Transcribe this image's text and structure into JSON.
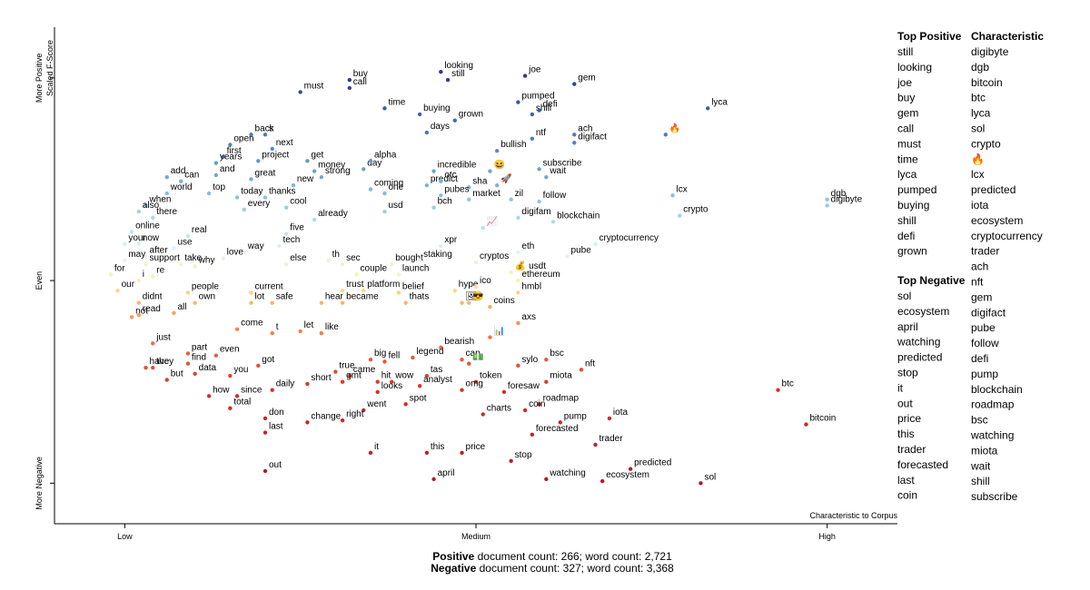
{
  "chart_data": {
    "type": "scatter",
    "x_title": "Characteristic to Corpus",
    "y_title": "Scaled F-Score",
    "xlim": [
      -0.1,
      1.1
    ],
    "ylim": [
      -1.2,
      1.25
    ],
    "xticks": [
      {
        "value": 0,
        "label": "Low"
      },
      {
        "value": 0.5,
        "label": "Medium"
      },
      {
        "value": 1,
        "label": "High"
      }
    ],
    "yticks": [
      {
        "value": -1,
        "label": "More Negative"
      },
      {
        "value": 0,
        "label": "Even"
      },
      {
        "value": 1,
        "label": "More Positive"
      }
    ],
    "labels": [
      "must",
      "buy",
      "call",
      "looking",
      "still",
      "joe",
      "gem",
      "time",
      "pumped",
      "buying",
      "grown",
      "shill",
      "defi",
      "lyca",
      "back",
      "s",
      "ach",
      "ntf",
      "digifact",
      "days",
      "open",
      "next",
      "bullish",
      "🔥",
      "first",
      "years",
      "project",
      "get",
      "day",
      "alpha",
      "money",
      "strong",
      "and",
      "great",
      "incredible",
      "😆",
      "wait",
      "subscribe",
      "add",
      "can",
      "world",
      "new",
      "coming",
      "predict",
      "otc",
      "sha",
      "🚀",
      "top",
      "today",
      "thanks",
      "one",
      "pubes",
      "market",
      "zil",
      "follow",
      "lcx",
      "dgb",
      "digibyte",
      "when",
      "also",
      "every",
      "cool",
      "usd",
      "bch",
      "digifam",
      "crypto",
      "there",
      "already",
      "📈",
      "blockchain",
      "online",
      "five",
      "real",
      "your",
      "now",
      "use",
      "tech",
      "xpr",
      "way",
      "eth",
      "cryptocurrency",
      "after",
      "may",
      "support",
      "take",
      "why",
      "love",
      "else",
      "th",
      "sec",
      "bought",
      "staking",
      "cryptos",
      "pube",
      "for",
      "i",
      "re",
      "💰",
      "usdt",
      "couple",
      "launch",
      "ethereum",
      "our",
      "people",
      "current",
      "trust",
      "platform",
      "belief",
      "hype",
      "ico",
      "hmbl",
      "didnt",
      "own",
      "lot",
      "safe",
      "hear",
      "became",
      "thats",
      "🖼",
      "😎",
      "coins",
      "not",
      "read",
      "all",
      "axs",
      "come",
      "t",
      "let",
      "like",
      "📊",
      "just",
      "bearish",
      "part",
      "even",
      "big",
      "fell",
      "legend",
      "cap",
      "bsc",
      "have",
      "they",
      "find",
      "got",
      "💵",
      "sylo",
      "nft",
      "data",
      "you",
      "true",
      "came",
      "but",
      "hit",
      "wow",
      "tas",
      "token",
      "miota",
      "gmt",
      "short",
      "analyst",
      "daily",
      "looks",
      "omg",
      "foresaw",
      "how",
      "since",
      "btc",
      "spot",
      "roadmap",
      "total",
      "went",
      "coin",
      "charts",
      "iota",
      "don",
      "right",
      "pump",
      "change",
      "bitcoin",
      "last",
      "forecasted",
      "trader",
      "it",
      "this",
      "price",
      "stop",
      "out",
      "predicted",
      "april",
      "watching",
      "ecosystem",
      "sol"
    ],
    "x": [
      0.25,
      0.32,
      0.32,
      0.45,
      0.46,
      0.57,
      0.64,
      0.37,
      0.56,
      0.42,
      0.47,
      0.58,
      0.59,
      0.83,
      0.18,
      0.2,
      0.64,
      0.58,
      0.64,
      0.43,
      0.15,
      0.21,
      0.53,
      0.77,
      0.14,
      0.13,
      0.19,
      0.26,
      0.34,
      0.35,
      0.27,
      0.28,
      0.13,
      0.18,
      0.44,
      0.52,
      0.6,
      0.59,
      0.06,
      0.08,
      0.06,
      0.24,
      0.35,
      0.43,
      0.45,
      0.49,
      0.53,
      0.12,
      0.16,
      0.2,
      0.37,
      0.45,
      0.49,
      0.55,
      0.59,
      0.78,
      1,
      1,
      0.03,
      0.02,
      0.17,
      0.23,
      0.37,
      0.44,
      0.56,
      0.79,
      0.04,
      0.27,
      0.51,
      0.61,
      0.01,
      0.23,
      0.09,
      0,
      0.02,
      0.07,
      0.22,
      0.45,
      0.17,
      0.56,
      0.67,
      0.03,
      0,
      0.03,
      0.08,
      0.1,
      0.14,
      0.23,
      0.29,
      0.31,
      0.38,
      0.42,
      0.5,
      0.63,
      -0.02,
      0.02,
      0.04,
      0.55,
      0.57,
      0.33,
      0.39,
      0.56,
      -0.01,
      0.09,
      0.18,
      0.31,
      0.34,
      0.39,
      0.47,
      0.5,
      0.56,
      0.02,
      0.1,
      0.18,
      0.21,
      0.28,
      0.31,
      0.4,
      0.48,
      0.49,
      0.52,
      0.01,
      0.02,
      0.07,
      0.56,
      0.16,
      0.21,
      0.25,
      0.28,
      0.52,
      0.04,
      0.45,
      0.09,
      0.13,
      0.35,
      0.37,
      0.41,
      0.48,
      0.6,
      0.03,
      0.04,
      0.09,
      0.19,
      0.49,
      0.56,
      0.65,
      0.1,
      0.15,
      0.3,
      0.32,
      0.06,
      0.36,
      0.38,
      0.43,
      0.5,
      0.6,
      0.31,
      0.26,
      0.42,
      0.21,
      0.36,
      0.48,
      0.54,
      0.12,
      0.16,
      0.93,
      0.4,
      0.59,
      0.15,
      0.34,
      0.57,
      0.51,
      0.69,
      0.2,
      0.31,
      0.62,
      0.26,
      0.97,
      0.2,
      0.58,
      0.67,
      0.35,
      0.43,
      0.48,
      0.55,
      0.2,
      0.72,
      0.44,
      0.6,
      0.68,
      0.82
    ],
    "values": [
      0.93,
      0.99,
      0.95,
      1.03,
      0.99,
      1.01,
      0.97,
      0.85,
      0.88,
      0.82,
      0.79,
      0.82,
      0.84,
      0.85,
      0.72,
      0.72,
      0.72,
      0.7,
      0.68,
      0.73,
      0.67,
      0.65,
      0.64,
      0.72,
      0.61,
      0.58,
      0.59,
      0.59,
      0.55,
      0.59,
      0.54,
      0.51,
      0.52,
      0.5,
      0.54,
      0.54,
      0.51,
      0.55,
      0.51,
      0.49,
      0.43,
      0.47,
      0.45,
      0.47,
      0.49,
      0.46,
      0.47,
      0.43,
      0.41,
      0.41,
      0.43,
      0.42,
      0.4,
      0.4,
      0.39,
      0.42,
      0.4,
      0.37,
      0.37,
      0.34,
      0.35,
      0.36,
      0.34,
      0.36,
      0.31,
      0.32,
      0.31,
      0.3,
      0.26,
      0.29,
      0.24,
      0.23,
      0.22,
      0.18,
      0.18,
      0.16,
      0.17,
      0.17,
      0.14,
      0.14,
      0.18,
      0.12,
      0.1,
      0.08,
      0.08,
      0.07,
      0.11,
      0.08,
      0.1,
      0.08,
      0.08,
      0.1,
      0.09,
      0.12,
      0.03,
      0,
      0.02,
      0.04,
      0.04,
      0.03,
      0.03,
      0,
      -0.05,
      -0.06,
      -0.06,
      -0.05,
      -0.05,
      -0.06,
      -0.05,
      -0.03,
      -0.06,
      -0.11,
      -0.11,
      -0.11,
      -0.11,
      -0.11,
      -0.11,
      -0.11,
      -0.11,
      -0.11,
      -0.13,
      -0.18,
      -0.17,
      -0.16,
      -0.21,
      -0.24,
      -0.26,
      -0.25,
      -0.26,
      -0.28,
      -0.31,
      -0.33,
      -0.36,
      -0.37,
      -0.39,
      -0.4,
      -0.38,
      -0.39,
      -0.39,
      -0.43,
      -0.43,
      -0.41,
      -0.42,
      -0.41,
      -0.42,
      -0.44,
      -0.46,
      -0.47,
      -0.45,
      -0.47,
      -0.49,
      -0.5,
      -0.5,
      -0.47,
      -0.5,
      -0.5,
      -0.5,
      -0.51,
      -0.52,
      -0.54,
      -0.55,
      -0.54,
      -0.55,
      -0.57,
      -0.57,
      -0.54,
      -0.61,
      -0.61,
      -0.63,
      -0.64,
      -0.64,
      -0.66,
      -0.68,
      -0.68,
      -0.69,
      -0.7,
      -0.7,
      -0.71,
      -0.75,
      -0.76,
      -0.81,
      -0.85,
      -0.85,
      -0.85,
      -0.89,
      -0.94,
      -0.93,
      -0.98,
      -0.98,
      -0.99,
      -1
    ]
  },
  "footer": [
    {
      "bold": "Positive",
      "text": " document count: 266; word count: 2,721"
    },
    {
      "bold": "Negative",
      "text": " document count: 327; word count: 3,368"
    }
  ],
  "top_positive": {
    "title": "Top Positive",
    "items": [
      "still",
      "looking",
      "joe",
      "buy",
      "gem",
      "call",
      "must",
      "time",
      "lyca",
      "pumped",
      "buying",
      "shill",
      "defi",
      "grown"
    ]
  },
  "top_negative": {
    "title": "Top Negative",
    "items": [
      "sol",
      "ecosystem",
      "april",
      "watching",
      "predicted",
      "stop",
      "it",
      "out",
      "price",
      "this",
      "trader",
      "forecasted",
      "last",
      "coin"
    ]
  },
  "characteristic": {
    "title": "Characteristic",
    "items": [
      "digibyte",
      "dgb",
      "bitcoin",
      "btc",
      "lyca",
      "sol",
      "crypto",
      "🔥",
      "lcx",
      "predicted",
      "iota",
      "ecosystem",
      "cryptocurrency",
      "trader",
      "ach",
      "nft",
      "gem",
      "digifact",
      "pube",
      "follow",
      "defi",
      "pump",
      "blockchain",
      "roadmap",
      "bsc",
      "watching",
      "miota",
      "wait",
      "shill",
      "subscribe"
    ]
  }
}
